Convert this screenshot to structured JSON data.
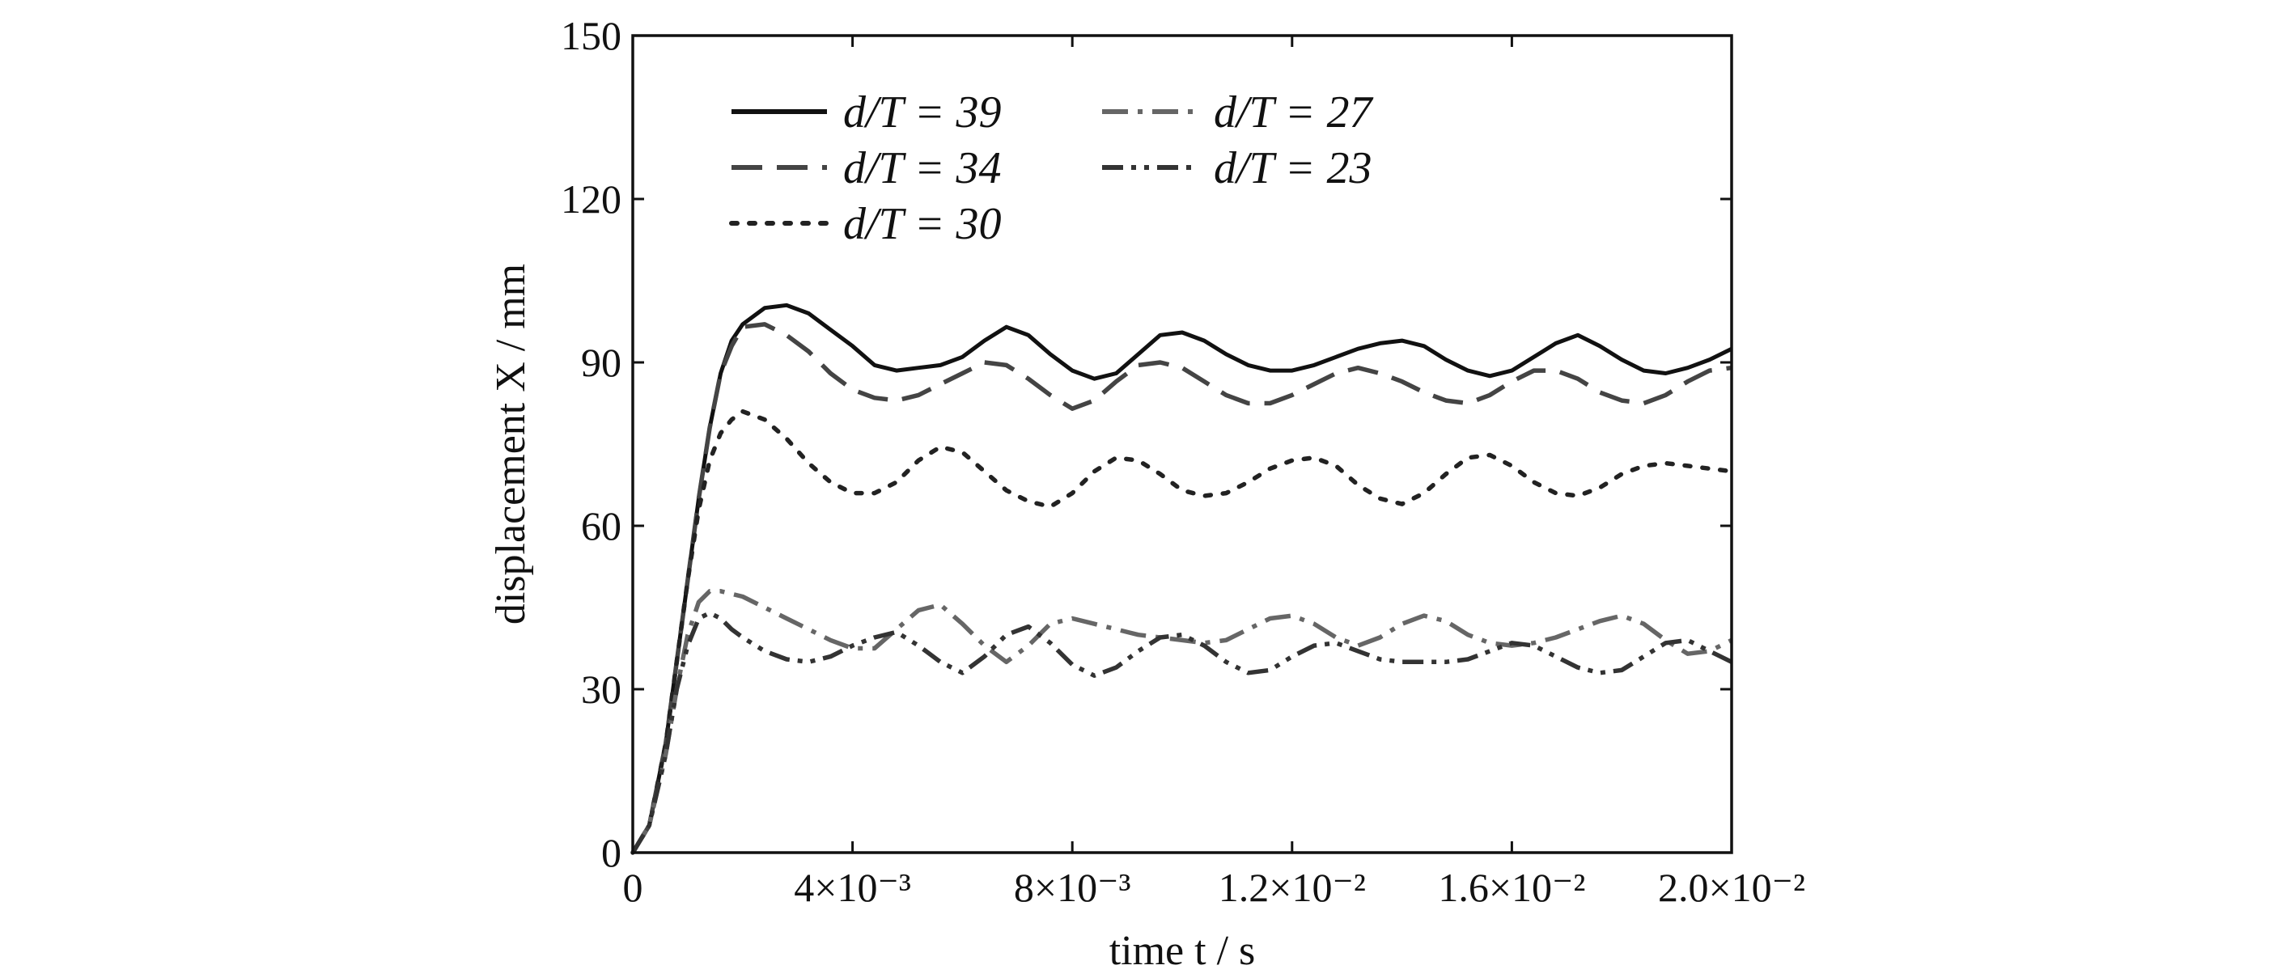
{
  "chart_data": {
    "type": "line",
    "title": "",
    "xlabel": "time t / s",
    "ylabel": "displacement X / mm",
    "xlim": [
      0,
      0.02
    ],
    "ylim": [
      0,
      150
    ],
    "x_ticks": [
      {
        "value": 0,
        "label": "0"
      },
      {
        "value": 0.004,
        "label": "4×10⁻³"
      },
      {
        "value": 0.008,
        "label": "8×10⁻³"
      },
      {
        "value": 0.012,
        "label": "1.2×10⁻²"
      },
      {
        "value": 0.016,
        "label": "1.6×10⁻²"
      },
      {
        "value": 0.02,
        "label": "2.0×10⁻²"
      }
    ],
    "y_ticks": [
      {
        "value": 0,
        "label": "0"
      },
      {
        "value": 30,
        "label": "30"
      },
      {
        "value": 60,
        "label": "60"
      },
      {
        "value": 90,
        "label": "90"
      },
      {
        "value": 120,
        "label": "120"
      },
      {
        "value": 150,
        "label": "150"
      }
    ],
    "grid": false,
    "legend_position": "top-left",
    "series": [
      {
        "name": "d/T = 39",
        "color": "#111111",
        "dash": "solid",
        "x": [
          0,
          0.0003,
          0.0006,
          0.0008,
          0.001,
          0.0012,
          0.0014,
          0.0016,
          0.0018,
          0.002,
          0.0024,
          0.0028,
          0.0032,
          0.0036,
          0.004,
          0.0044,
          0.0048,
          0.0052,
          0.0056,
          0.006,
          0.0064,
          0.0068,
          0.0072,
          0.0076,
          0.008,
          0.0084,
          0.0088,
          0.0092,
          0.0096,
          0.01,
          0.0104,
          0.0108,
          0.0112,
          0.0116,
          0.012,
          0.0124,
          0.0128,
          0.0132,
          0.0136,
          0.014,
          0.0144,
          0.0148,
          0.0152,
          0.0156,
          0.016,
          0.0164,
          0.0168,
          0.0172,
          0.0176,
          0.018,
          0.0184,
          0.0188,
          0.0192,
          0.0196,
          0.02
        ],
        "y": [
          0,
          5,
          20,
          35,
          50,
          65,
          78,
          88,
          94,
          97,
          100,
          100.5,
          99,
          96,
          93,
          89.5,
          88.5,
          89,
          89.5,
          91,
          94,
          96.5,
          95,
          91.5,
          88.5,
          87,
          88,
          91.5,
          95,
          95.5,
          94,
          91.5,
          89.5,
          88.5,
          88.5,
          89.5,
          91,
          92.5,
          93.5,
          94,
          93,
          90.5,
          88.5,
          87.5,
          88.5,
          91,
          93.5,
          95,
          93,
          90.5,
          88.5,
          88,
          89,
          90.5,
          92.5
        ]
      },
      {
        "name": "d/T = 34",
        "color": "#444444",
        "dash": "long-dash",
        "x": [
          0,
          0.0003,
          0.0006,
          0.0008,
          0.001,
          0.0012,
          0.0014,
          0.0016,
          0.0018,
          0.002,
          0.0024,
          0.0028,
          0.0032,
          0.0036,
          0.004,
          0.0044,
          0.0048,
          0.0052,
          0.0056,
          0.006,
          0.0064,
          0.0068,
          0.0072,
          0.0076,
          0.008,
          0.0084,
          0.0088,
          0.0092,
          0.0096,
          0.01,
          0.0104,
          0.0108,
          0.0112,
          0.0116,
          0.012,
          0.0124,
          0.0128,
          0.0132,
          0.0136,
          0.014,
          0.0144,
          0.0148,
          0.0152,
          0.0156,
          0.016,
          0.0164,
          0.0168,
          0.0172,
          0.0176,
          0.018,
          0.0184,
          0.0188,
          0.0192,
          0.0196,
          0.02
        ],
        "y": [
          0,
          5,
          20,
          35,
          50,
          65,
          78,
          88,
          93,
          96.5,
          97,
          95,
          92,
          88,
          85,
          83.5,
          83,
          84,
          86,
          88,
          90,
          89.5,
          87,
          84,
          81.5,
          83,
          86.5,
          89.5,
          90,
          89,
          86.5,
          84,
          82.5,
          82.5,
          84,
          86,
          88,
          89,
          88,
          86.5,
          84.5,
          83,
          82.5,
          84,
          86.5,
          88.5,
          88.5,
          87,
          84.5,
          83,
          82.5,
          84,
          86.5,
          88.5,
          89
        ]
      },
      {
        "name": "d/T = 30",
        "color": "#222222",
        "dash": "dotted",
        "x": [
          0,
          0.0003,
          0.0006,
          0.0008,
          0.001,
          0.0012,
          0.0014,
          0.0016,
          0.0018,
          0.002,
          0.0024,
          0.0028,
          0.0032,
          0.0036,
          0.004,
          0.0044,
          0.0048,
          0.0052,
          0.0056,
          0.006,
          0.0064,
          0.0068,
          0.0072,
          0.0076,
          0.008,
          0.0084,
          0.0088,
          0.0092,
          0.0096,
          0.01,
          0.0104,
          0.0108,
          0.0112,
          0.0116,
          0.012,
          0.0124,
          0.0128,
          0.0132,
          0.0136,
          0.014,
          0.0144,
          0.0148,
          0.0152,
          0.0156,
          0.016,
          0.0164,
          0.0168,
          0.0172,
          0.0176,
          0.018,
          0.0184,
          0.0188,
          0.0192,
          0.0196,
          0.02
        ],
        "y": [
          0,
          5,
          20,
          35,
          50,
          63,
          72,
          77,
          79.5,
          81,
          79.5,
          76,
          71.5,
          68,
          66,
          66,
          68,
          72,
          74.5,
          73.5,
          70,
          66.5,
          64.5,
          63.5,
          66,
          70,
          72.5,
          72,
          69.5,
          66.5,
          65.5,
          66,
          68,
          70.5,
          72,
          72.5,
          71,
          67.5,
          65,
          64,
          66,
          69.5,
          72.5,
          73,
          71,
          68,
          66,
          65.5,
          67,
          69.5,
          71,
          71.5,
          71,
          70.5,
          70
        ]
      },
      {
        "name": "d/T = 27",
        "color": "#666666",
        "dash": "dash-dot",
        "x": [
          0,
          0.0003,
          0.0006,
          0.0008,
          0.001,
          0.0012,
          0.0014,
          0.0016,
          0.0018,
          0.002,
          0.0024,
          0.0028,
          0.0032,
          0.0036,
          0.004,
          0.0044,
          0.0048,
          0.0052,
          0.0056,
          0.006,
          0.0064,
          0.0068,
          0.0072,
          0.0076,
          0.008,
          0.0084,
          0.0088,
          0.0092,
          0.0096,
          0.01,
          0.0104,
          0.0108,
          0.0112,
          0.0116,
          0.012,
          0.0124,
          0.0128,
          0.0132,
          0.0136,
          0.014,
          0.0144,
          0.0148,
          0.0152,
          0.0156,
          0.016,
          0.0164,
          0.0168,
          0.0172,
          0.0176,
          0.018,
          0.0184,
          0.0188,
          0.0192,
          0.0196,
          0.02
        ],
        "y": [
          0,
          5,
          18,
          30,
          40,
          46,
          48,
          48,
          47.5,
          47,
          45,
          43,
          41,
          39,
          37.5,
          37.5,
          41,
          44.5,
          45.5,
          42,
          38,
          35,
          38,
          42,
          43,
          42,
          41,
          40,
          39.5,
          39,
          38.5,
          39,
          41,
          43,
          43.5,
          42,
          39.5,
          38,
          39.5,
          42,
          43.5,
          42.5,
          40,
          38.5,
          38,
          38.5,
          39.5,
          41,
          42.5,
          43.5,
          42,
          39,
          36.5,
          37,
          39
        ]
      },
      {
        "name": "d/T = 23",
        "color": "#333333",
        "dash": "dash-dot-dot",
        "x": [
          0,
          0.0003,
          0.0006,
          0.0008,
          0.001,
          0.0012,
          0.0014,
          0.0016,
          0.0018,
          0.002,
          0.0024,
          0.0028,
          0.0032,
          0.0036,
          0.004,
          0.0044,
          0.0048,
          0.0052,
          0.0056,
          0.006,
          0.0064,
          0.0068,
          0.0072,
          0.0076,
          0.008,
          0.0084,
          0.0088,
          0.0092,
          0.0096,
          0.01,
          0.0104,
          0.0108,
          0.0112,
          0.0116,
          0.012,
          0.0124,
          0.0128,
          0.0132,
          0.0136,
          0.014,
          0.0144,
          0.0148,
          0.0152,
          0.0156,
          0.016,
          0.0164,
          0.0168,
          0.0172,
          0.0176,
          0.018,
          0.0184,
          0.0188,
          0.0192,
          0.0196,
          0.02
        ],
        "y": [
          0,
          5,
          18,
          30,
          38,
          43,
          44,
          43,
          41,
          39.5,
          37,
          35.5,
          35,
          36,
          38,
          39.5,
          40.5,
          38,
          35,
          33,
          36,
          40,
          41.5,
          38.5,
          34.5,
          32.5,
          34,
          37,
          39.5,
          40,
          38,
          35,
          33,
          33.5,
          36,
          38,
          38.5,
          37,
          35.5,
          35,
          35,
          35,
          35.5,
          37,
          38.5,
          38,
          36,
          34,
          33,
          33.5,
          36,
          38.5,
          39,
          37,
          35
        ]
      }
    ]
  }
}
